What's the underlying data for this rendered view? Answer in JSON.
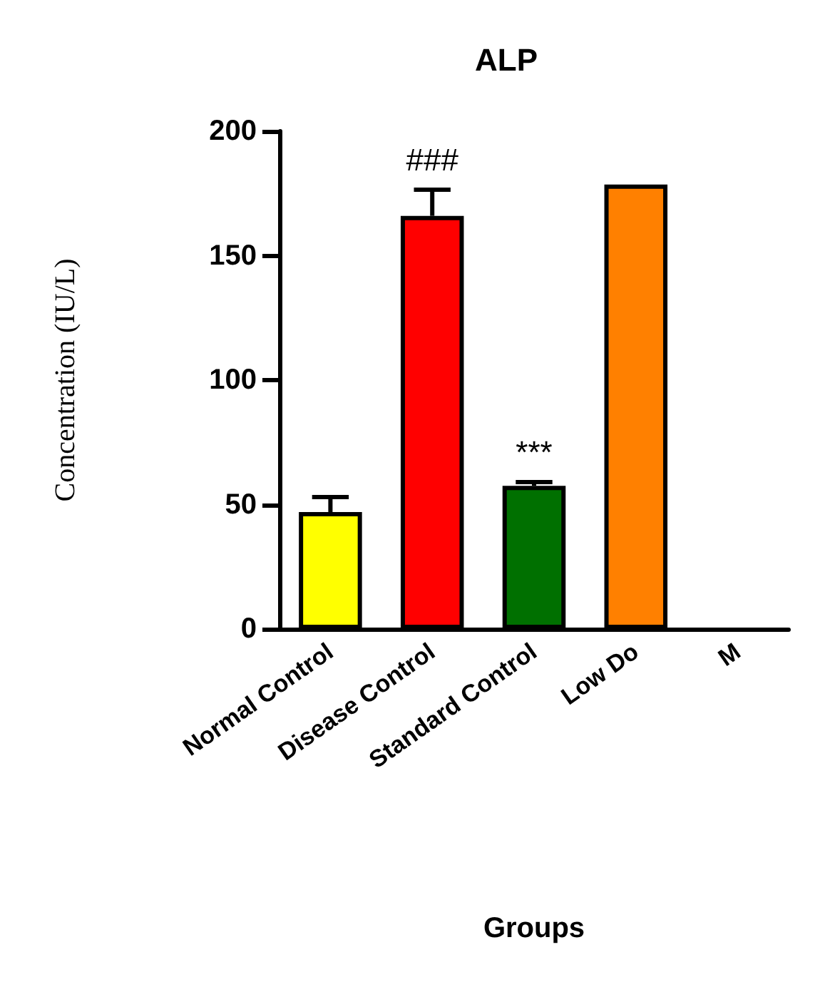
{
  "chart_data": {
    "type": "bar",
    "title": "ALP",
    "xlabel": "Groups",
    "ylabel": "Concentration (IU/L)",
    "categories": [
      "Normal Control",
      "Disease Control",
      "Standard Control",
      "Low Do",
      "M"
    ],
    "values": [
      47,
      166,
      57.5,
      178.6,
      null
    ],
    "colors": [
      "#ffff00",
      "#ff0000",
      "#007000",
      "#ff8000",
      "#ffffff"
    ],
    "errors": [
      [
        47,
        53
      ],
      [
        166,
        176.5
      ],
      [
        57.5,
        59
      ],
      null,
      null
    ],
    "ylim": [
      0,
      200
    ],
    "yticks": [
      0,
      50,
      100,
      150,
      200
    ],
    "grid": false,
    "annotations": [
      {
        "text": "###",
        "x": "Disease Control",
        "y": 176.5
      },
      {
        "text": "***",
        "x": "Standard Control",
        "y": 59
      }
    ]
  }
}
